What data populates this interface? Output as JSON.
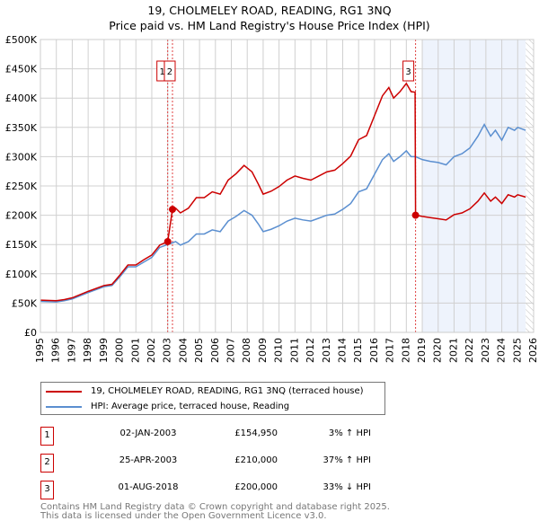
{
  "chart_data": {
    "type": "line",
    "title": "19, CHOLMELEY ROAD, READING, RG1 3NQ",
    "subtitle": "Price paid vs. HM Land Registry's House Price Index (HPI)",
    "xlim": [
      1995,
      2026
    ],
    "ylim": [
      0,
      500000
    ],
    "yticks": [
      0,
      50000,
      100000,
      150000,
      200000,
      250000,
      300000,
      350000,
      400000,
      450000,
      500000
    ],
    "ytick_labels": [
      "£0",
      "£50K",
      "£100K",
      "£150K",
      "£200K",
      "£250K",
      "£300K",
      "£350K",
      "£400K",
      "£450K",
      "£500K"
    ],
    "xtick_labels": [
      "1995",
      "1996",
      "1997",
      "1998",
      "1999",
      "2000",
      "2001",
      "2002",
      "2003",
      "2004",
      "2005",
      "2006",
      "2007",
      "2008",
      "2009",
      "2010",
      "2011",
      "2012",
      "2013",
      "2014",
      "2015",
      "2016",
      "2017",
      "2018",
      "2019",
      "2020",
      "2021",
      "2022",
      "2023",
      "2024",
      "2025",
      "2026"
    ],
    "grid": true,
    "forecast_shade_start": 2019,
    "hatch_start": 2025.5,
    "series": [
      {
        "name": "19, CHOLMELEY ROAD, READING, RG1 3NQ (terraced house)",
        "color": "#cc0000",
        "x": [
          1995,
          1996,
          1996.5,
          1997,
          1998,
          1999,
          1999.5,
          2000,
          2000.5,
          2001,
          2001.5,
          2002,
          2002.5,
          2003.0,
          2003.3,
          2003.5,
          2003.8,
          2004.3,
          2004.8,
          2005.3,
          2005.8,
          2006.3,
          2006.8,
          2007.3,
          2007.8,
          2008.3,
          2008.7,
          2009,
          2009.5,
          2010,
          2010.5,
          2011,
          2011.5,
          2012,
          2012.5,
          2013,
          2013.5,
          2014,
          2014.5,
          2015,
          2015.5,
          2016,
          2016.5,
          2016.9,
          2017.2,
          2017.6,
          2018,
          2018.3,
          2018.55,
          2018.58,
          2019,
          2019.5,
          2020,
          2020.5,
          2021,
          2021.5,
          2022,
          2022.5,
          2022.9,
          2023.3,
          2023.6,
          2024,
          2024.4,
          2024.8,
          2025,
          2025.5
        ],
        "y": [
          55,
          54,
          56,
          59,
          70,
          80,
          82,
          98,
          115,
          115,
          124,
          132,
          149,
          155,
          210,
          212,
          204,
          212,
          230,
          230,
          240,
          236,
          260,
          271,
          285,
          274,
          253,
          236,
          241,
          249,
          260,
          267,
          263,
          260,
          267,
          274,
          277,
          288,
          301,
          329,
          336,
          370,
          404,
          418,
          400,
          411,
          425,
          411,
          410,
          200,
          198,
          196,
          194,
          192,
          201,
          204,
          211,
          224,
          238,
          224,
          231,
          220,
          235,
          231,
          235,
          231
        ]
      },
      {
        "name": "HPI: Average price, terraced house, Reading",
        "color": "#5b8fd0",
        "x": [
          1995,
          1996,
          1996.5,
          1997,
          1998,
          1999,
          1999.5,
          2000,
          2000.5,
          2001,
          2001.5,
          2002,
          2002.5,
          2003.0,
          2003.3,
          2003.5,
          2003.8,
          2004.3,
          2004.8,
          2005.3,
          2005.8,
          2006.3,
          2006.8,
          2007.3,
          2007.8,
          2008.3,
          2008.7,
          2009,
          2009.5,
          2010,
          2010.5,
          2011,
          2011.5,
          2012,
          2012.5,
          2013,
          2013.5,
          2014,
          2014.5,
          2015,
          2015.5,
          2016,
          2016.5,
          2016.9,
          2017.2,
          2017.6,
          2018,
          2018.3,
          2018.58,
          2019,
          2019.5,
          2020,
          2020.5,
          2021,
          2021.5,
          2022,
          2022.5,
          2022.9,
          2023.3,
          2023.6,
          2024,
          2024.4,
          2024.8,
          2025,
          2025.5
        ],
        "y": [
          53,
          52,
          54,
          57,
          68,
          78,
          80,
          95,
          112,
          112,
          120,
          128,
          145,
          150,
          153,
          155,
          149,
          155,
          168,
          168,
          175,
          172,
          190,
          198,
          208,
          200,
          185,
          172,
          176,
          182,
          190,
          195,
          192,
          190,
          195,
          200,
          202,
          210,
          220,
          240,
          245,
          270,
          295,
          305,
          292,
          300,
          310,
          300,
          300,
          295,
          292,
          290,
          286,
          300,
          305,
          315,
          335,
          355,
          335,
          345,
          328,
          350,
          345,
          350,
          345
        ]
      }
    ],
    "y_units": "thousands GBP",
    "sales": [
      {
        "label": "1",
        "x": 2003.0,
        "date": "02-JAN-2003",
        "price": "£154,950",
        "price_value": 154950,
        "hpi": "3% ↑ HPI"
      },
      {
        "label": "2",
        "x": 2003.3,
        "date": "25-APR-2003",
        "price": "£210,000",
        "price_value": 210000,
        "hpi": "37% ↑ HPI"
      },
      {
        "label": "3",
        "x": 2018.58,
        "date": "01-AUG-2018",
        "price": "£200,000",
        "price_value": 200000,
        "hpi": "33% ↓ HPI"
      }
    ]
  },
  "footer": {
    "line1": "Contains HM Land Registry data © Crown copyright and database right 2025.",
    "line2": "This data is licensed under the Open Government Licence v3.0."
  }
}
